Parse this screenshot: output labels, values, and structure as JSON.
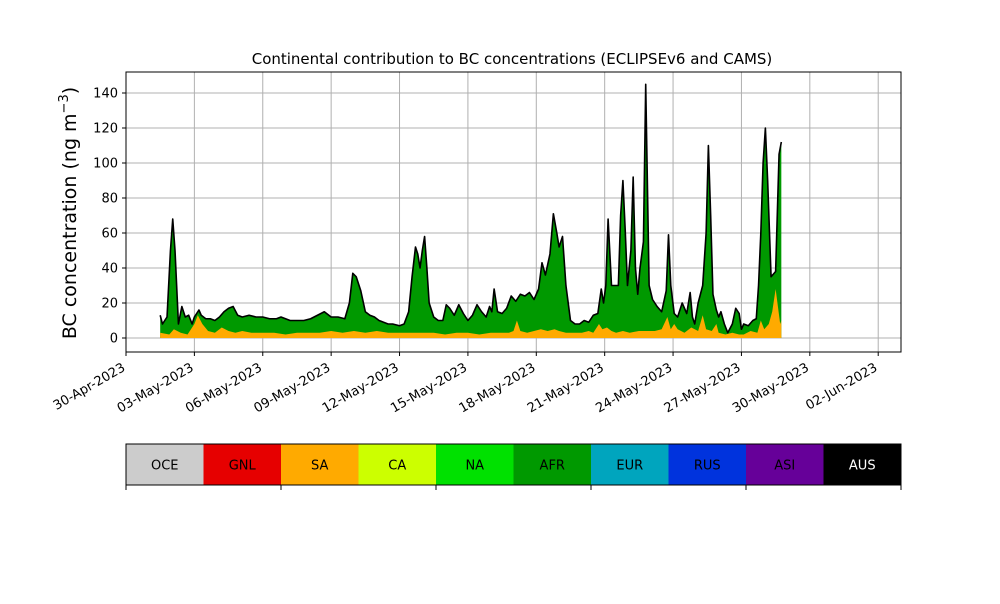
{
  "chart_data": {
    "type": "area",
    "title": "Continental contribution to BC concentrations (ECLIPSEv6 and CAMS)",
    "ylabel_main": "BC concentration (ng m",
    "ylabel_sup": "−3",
    "ylabel_close": ")",
    "xlabel": "",
    "ylim": [
      -8,
      152
    ],
    "yticks": [
      0,
      20,
      40,
      60,
      80,
      100,
      120,
      140
    ],
    "xlim": [
      "2023-04-30",
      "2023-06-03"
    ],
    "xticks": [
      "30-Apr-2023",
      "03-May-2023",
      "06-May-2023",
      "09-May-2023",
      "12-May-2023",
      "15-May-2023",
      "18-May-2023",
      "21-May-2023",
      "24-May-2023",
      "27-May-2023",
      "30-May-2023",
      "02-Jun-2023"
    ],
    "grid": true,
    "x_format": "days after 2023-04-30",
    "total": [
      [
        1.5,
        13
      ],
      [
        1.6,
        8
      ],
      [
        1.8,
        12
      ],
      [
        1.95,
        50
      ],
      [
        2.05,
        68
      ],
      [
        2.15,
        50
      ],
      [
        2.3,
        8
      ],
      [
        2.45,
        18
      ],
      [
        2.6,
        12
      ],
      [
        2.75,
        13
      ],
      [
        2.9,
        8
      ],
      [
        3.0,
        12
      ],
      [
        3.1,
        14
      ],
      [
        3.2,
        16
      ],
      [
        3.3,
        13
      ],
      [
        3.5,
        11
      ],
      [
        3.7,
        11
      ],
      [
        3.9,
        10
      ],
      [
        4.1,
        12
      ],
      [
        4.3,
        15
      ],
      [
        4.5,
        17
      ],
      [
        4.7,
        18
      ],
      [
        4.9,
        13
      ],
      [
        5.1,
        12
      ],
      [
        5.4,
        13
      ],
      [
        5.7,
        12
      ],
      [
        6.0,
        12
      ],
      [
        6.3,
        11
      ],
      [
        6.6,
        11
      ],
      [
        6.8,
        12
      ],
      [
        7.0,
        11
      ],
      [
        7.2,
        10
      ],
      [
        7.5,
        10
      ],
      [
        7.8,
        10
      ],
      [
        8.1,
        11
      ],
      [
        8.4,
        13
      ],
      [
        8.7,
        15
      ],
      [
        9.0,
        12
      ],
      [
        9.3,
        12
      ],
      [
        9.6,
        11
      ],
      [
        9.8,
        20
      ],
      [
        9.95,
        37
      ],
      [
        10.1,
        35
      ],
      [
        10.3,
        27
      ],
      [
        10.5,
        15
      ],
      [
        10.7,
        13
      ],
      [
        10.9,
        12
      ],
      [
        11.1,
        10
      ],
      [
        11.3,
        9
      ],
      [
        11.5,
        8
      ],
      [
        11.7,
        8
      ],
      [
        12.0,
        7
      ],
      [
        12.2,
        8
      ],
      [
        12.4,
        15
      ],
      [
        12.55,
        35
      ],
      [
        12.7,
        52
      ],
      [
        12.8,
        48
      ],
      [
        12.9,
        40
      ],
      [
        13.0,
        50
      ],
      [
        13.1,
        58
      ],
      [
        13.2,
        40
      ],
      [
        13.3,
        20
      ],
      [
        13.5,
        12
      ],
      [
        13.7,
        10
      ],
      [
        13.9,
        10
      ],
      [
        14.05,
        19
      ],
      [
        14.2,
        17
      ],
      [
        14.4,
        13
      ],
      [
        14.6,
        19
      ],
      [
        14.8,
        14
      ],
      [
        15.0,
        10
      ],
      [
        15.2,
        13
      ],
      [
        15.4,
        19
      ],
      [
        15.6,
        15
      ],
      [
        15.8,
        12
      ],
      [
        15.95,
        18
      ],
      [
        16.05,
        15
      ],
      [
        16.15,
        28
      ],
      [
        16.3,
        15
      ],
      [
        16.5,
        14
      ],
      [
        16.7,
        17
      ],
      [
        16.9,
        24
      ],
      [
        17.1,
        21
      ],
      [
        17.3,
        25
      ],
      [
        17.5,
        24
      ],
      [
        17.7,
        26
      ],
      [
        17.9,
        22
      ],
      [
        18.1,
        28
      ],
      [
        18.25,
        43
      ],
      [
        18.4,
        36
      ],
      [
        18.6,
        48
      ],
      [
        18.75,
        71
      ],
      [
        18.9,
        60
      ],
      [
        19.0,
        52
      ],
      [
        19.15,
        58
      ],
      [
        19.3,
        30
      ],
      [
        19.5,
        10
      ],
      [
        19.7,
        8
      ],
      [
        19.9,
        8
      ],
      [
        20.1,
        10
      ],
      [
        20.3,
        9
      ],
      [
        20.5,
        13
      ],
      [
        20.7,
        14
      ],
      [
        20.85,
        28
      ],
      [
        20.95,
        20
      ],
      [
        21.05,
        30
      ],
      [
        21.15,
        68
      ],
      [
        21.3,
        30
      ],
      [
        21.5,
        30
      ],
      [
        21.6,
        30
      ],
      [
        21.7,
        70
      ],
      [
        21.8,
        90
      ],
      [
        21.9,
        62
      ],
      [
        22.0,
        30
      ],
      [
        22.15,
        50
      ],
      [
        22.25,
        92
      ],
      [
        22.35,
        40
      ],
      [
        22.45,
        25
      ],
      [
        22.55,
        40
      ],
      [
        22.7,
        55
      ],
      [
        22.8,
        145
      ],
      [
        22.95,
        30
      ],
      [
        23.1,
        22
      ],
      [
        23.3,
        18
      ],
      [
        23.5,
        15
      ],
      [
        23.7,
        27
      ],
      [
        23.8,
        59
      ],
      [
        23.9,
        30
      ],
      [
        24.05,
        14
      ],
      [
        24.2,
        12
      ],
      [
        24.4,
        20
      ],
      [
        24.6,
        14
      ],
      [
        24.75,
        26
      ],
      [
        24.85,
        12
      ],
      [
        24.95,
        8
      ],
      [
        25.1,
        20
      ],
      [
        25.3,
        30
      ],
      [
        25.45,
        60
      ],
      [
        25.55,
        110
      ],
      [
        25.65,
        70
      ],
      [
        25.75,
        25
      ],
      [
        25.9,
        16
      ],
      [
        26.0,
        12
      ],
      [
        26.1,
        15
      ],
      [
        26.25,
        8
      ],
      [
        26.4,
        3
      ],
      [
        26.6,
        8
      ],
      [
        26.75,
        17
      ],
      [
        26.9,
        14
      ],
      [
        27.0,
        5
      ],
      [
        27.1,
        8
      ],
      [
        27.3,
        7
      ],
      [
        27.5,
        10
      ],
      [
        27.65,
        11
      ],
      [
        27.75,
        30
      ],
      [
        27.85,
        60
      ],
      [
        27.95,
        100
      ],
      [
        28.05,
        120
      ],
      [
        28.15,
        90
      ],
      [
        28.3,
        35
      ],
      [
        28.5,
        38
      ],
      [
        28.65,
        105
      ],
      [
        28.75,
        112
      ]
    ],
    "sa": [
      [
        1.5,
        3
      ],
      [
        1.9,
        2
      ],
      [
        2.1,
        5
      ],
      [
        2.4,
        3
      ],
      [
        2.7,
        2
      ],
      [
        3.0,
        8
      ],
      [
        3.15,
        13
      ],
      [
        3.35,
        8
      ],
      [
        3.6,
        4
      ],
      [
        3.9,
        3
      ],
      [
        4.2,
        6
      ],
      [
        4.5,
        4
      ],
      [
        4.8,
        3
      ],
      [
        5.1,
        4
      ],
      [
        5.5,
        3
      ],
      [
        6.0,
        3
      ],
      [
        6.5,
        3
      ],
      [
        7.0,
        2
      ],
      [
        7.5,
        3
      ],
      [
        8.0,
        3
      ],
      [
        8.5,
        3
      ],
      [
        9.0,
        4
      ],
      [
        9.5,
        3
      ],
      [
        10.0,
        4
      ],
      [
        10.5,
        3
      ],
      [
        11.0,
        4
      ],
      [
        11.5,
        3
      ],
      [
        12.0,
        3
      ],
      [
        12.5,
        3
      ],
      [
        13.0,
        3
      ],
      [
        13.5,
        3
      ],
      [
        14.0,
        2
      ],
      [
        14.5,
        3
      ],
      [
        15.0,
        3
      ],
      [
        15.5,
        2
      ],
      [
        16.0,
        3
      ],
      [
        16.5,
        3
      ],
      [
        16.8,
        3
      ],
      [
        17.0,
        4
      ],
      [
        17.15,
        10
      ],
      [
        17.3,
        4
      ],
      [
        17.6,
        3
      ],
      [
        17.9,
        4
      ],
      [
        18.2,
        5
      ],
      [
        18.5,
        4
      ],
      [
        18.8,
        5
      ],
      [
        19.0,
        4
      ],
      [
        19.3,
        3
      ],
      [
        19.7,
        3
      ],
      [
        20.0,
        3
      ],
      [
        20.3,
        4
      ],
      [
        20.5,
        3
      ],
      [
        20.75,
        8
      ],
      [
        20.9,
        5
      ],
      [
        21.1,
        6
      ],
      [
        21.3,
        4
      ],
      [
        21.5,
        3
      ],
      [
        21.8,
        4
      ],
      [
        22.1,
        3
      ],
      [
        22.5,
        4
      ],
      [
        22.9,
        4
      ],
      [
        23.2,
        4
      ],
      [
        23.5,
        5
      ],
      [
        23.75,
        12
      ],
      [
        23.9,
        5
      ],
      [
        24.05,
        8
      ],
      [
        24.2,
        5
      ],
      [
        24.5,
        3
      ],
      [
        24.8,
        6
      ],
      [
        25.1,
        4
      ],
      [
        25.3,
        13
      ],
      [
        25.45,
        5
      ],
      [
        25.7,
        4
      ],
      [
        25.9,
        8
      ],
      [
        26.0,
        3
      ],
      [
        26.3,
        2
      ],
      [
        26.6,
        3
      ],
      [
        26.9,
        2
      ],
      [
        27.1,
        2
      ],
      [
        27.4,
        4
      ],
      [
        27.7,
        3
      ],
      [
        27.85,
        10
      ],
      [
        28.0,
        5
      ],
      [
        28.2,
        8
      ],
      [
        28.35,
        15
      ],
      [
        28.5,
        28
      ],
      [
        28.6,
        18
      ],
      [
        28.7,
        8
      ],
      [
        28.75,
        10
      ]
    ]
  },
  "legend": [
    {
      "label": "OCE",
      "color": "#cccccc",
      "text_color": "#000000"
    },
    {
      "label": "GNL",
      "color": "#e60000",
      "text_color": "#000000"
    },
    {
      "label": "SA",
      "color": "#ffaa00",
      "text_color": "#000000"
    },
    {
      "label": "CA",
      "color": "#ccff00",
      "text_color": "#000000"
    },
    {
      "label": "NA",
      "color": "#00e100",
      "text_color": "#000000"
    },
    {
      "label": "AFR",
      "color": "#009900",
      "text_color": "#000000"
    },
    {
      "label": "EUR",
      "color": "#00a5be",
      "text_color": "#000000"
    },
    {
      "label": "RUS",
      "color": "#0033dd",
      "text_color": "#000000"
    },
    {
      "label": "ASI",
      "color": "#660099",
      "text_color": "#000000"
    },
    {
      "label": "AUS",
      "color": "#000000",
      "text_color": "#ffffff"
    }
  ],
  "colors": {
    "afr_fill": "#009900",
    "sa_fill": "#ffaa00",
    "total_line": "#000000",
    "grid": "#b0b0b0"
  }
}
